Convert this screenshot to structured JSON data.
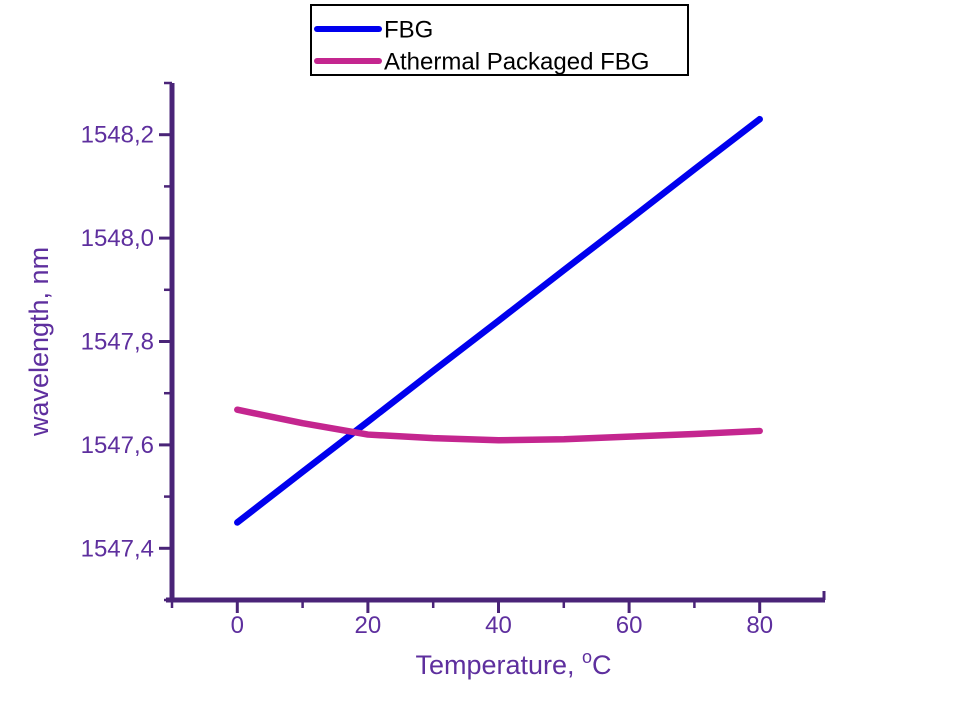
{
  "page": {
    "background": "#ffffff"
  },
  "colors": {
    "axis": "#4a2478",
    "tick_label_text": "#5e2f9e",
    "axis_title_text": "#5e2f9e",
    "legend_text": "#000000",
    "legend_border": "#000000",
    "legend_background": "#ffffff",
    "fbg_line": "#0000ee",
    "athermal_line": "#c4268f"
  },
  "legend": {
    "position": "top-center",
    "entries": [
      {
        "label": "FBG",
        "color": "#0000ee"
      },
      {
        "label": "Athermal Packaged FBG",
        "color": "#c4268f"
      }
    ]
  },
  "axes": {
    "x": {
      "title_main": "Temperature, ",
      "title_superscript": "o",
      "title_after_superscript": "C",
      "lim": [
        -10,
        90
      ],
      "major_ticks": [
        {
          "value": 0,
          "label": "0"
        },
        {
          "value": 20,
          "label": "20"
        },
        {
          "value": 40,
          "label": "40"
        },
        {
          "value": 60,
          "label": "60"
        },
        {
          "value": 80,
          "label": "80"
        }
      ],
      "minor_ticks": [
        -10,
        10,
        30,
        50,
        70
      ]
    },
    "y": {
      "title": "wavelength, nm",
      "lim": [
        1547.3,
        1548.3
      ],
      "major_ticks": [
        {
          "value": 1547.4,
          "label": "1547,4"
        },
        {
          "value": 1547.6,
          "label": "1547,6"
        },
        {
          "value": 1547.8,
          "label": "1547,8"
        },
        {
          "value": 1548.0,
          "label": "1548,0"
        },
        {
          "value": 1548.2,
          "label": "1548,2"
        }
      ],
      "minor_ticks": [
        1547.3,
        1547.5,
        1547.7,
        1547.9,
        1548.1,
        1548.3
      ]
    }
  },
  "chart_data": {
    "type": "line",
    "title": "",
    "xlabel": "Temperature, °C",
    "ylabel": "wavelength, nm",
    "x": [
      0,
      10,
      20,
      30,
      40,
      50,
      60,
      70,
      80
    ],
    "series": [
      {
        "name": "FBG",
        "color": "#0000ee",
        "values": [
          1547.45,
          1547.548,
          1547.645,
          1547.743,
          1547.84,
          1547.938,
          1548.035,
          1548.133,
          1548.23
        ]
      },
      {
        "name": "Athermal Packaged FBG",
        "color": "#c4268f",
        "values": [
          1547.668,
          1547.642,
          1547.62,
          1547.613,
          1547.609,
          1547.611,
          1547.616,
          1547.621,
          1547.627
        ]
      }
    ],
    "xlim": [
      -10,
      90
    ],
    "ylim": [
      1547.3,
      1548.3
    ],
    "grid": false,
    "legend_position": "top-center",
    "decimal_separator": ","
  }
}
